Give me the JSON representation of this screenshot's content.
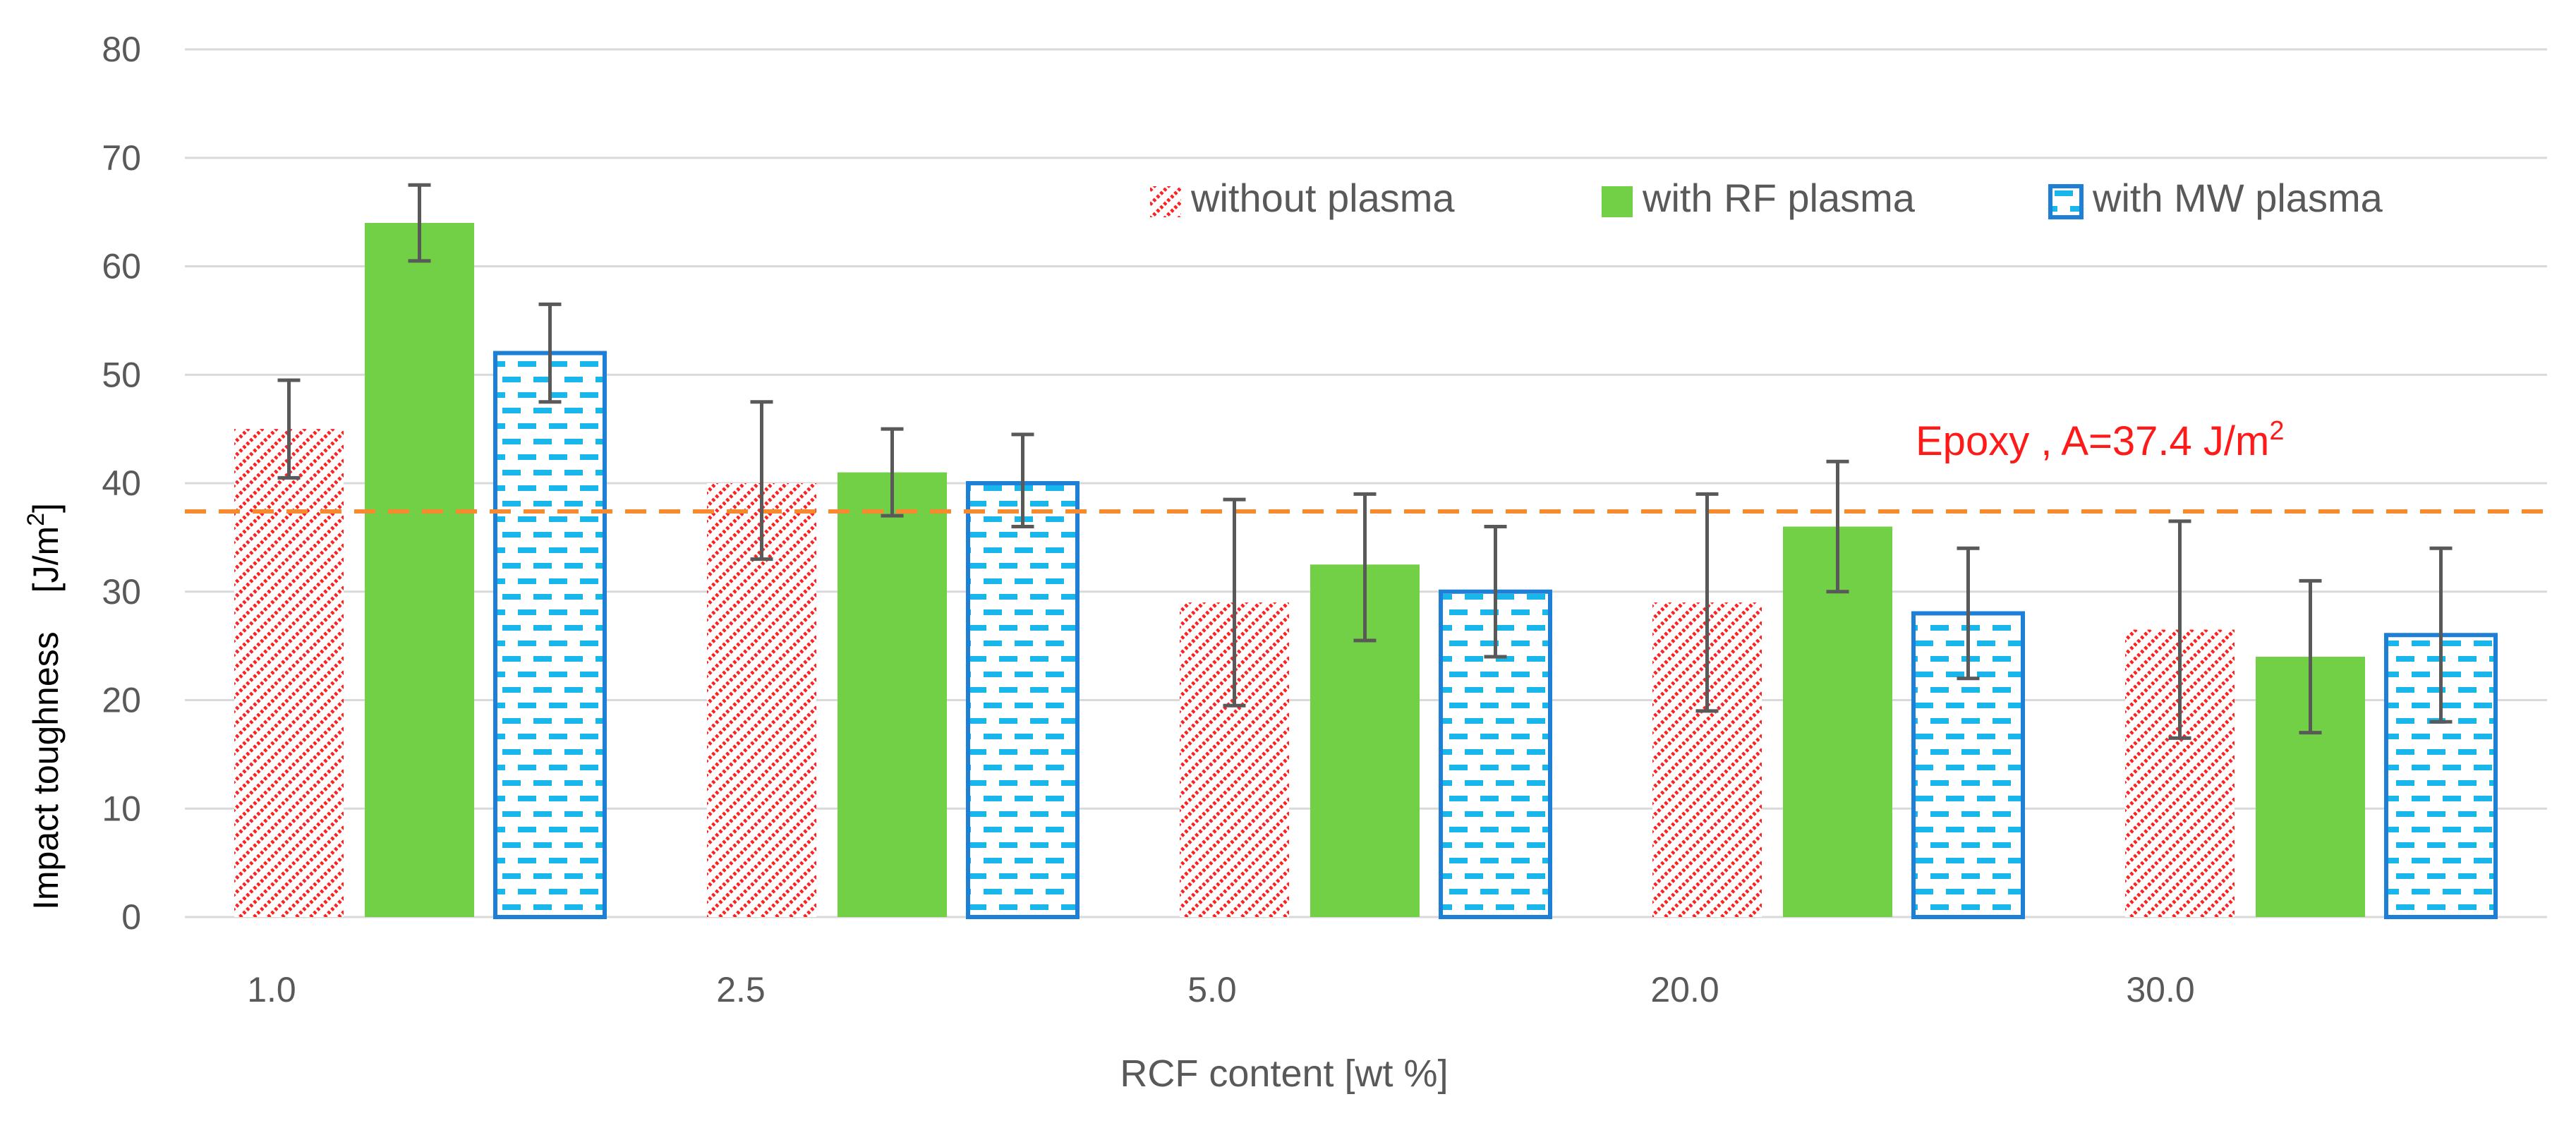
{
  "chart_data": {
    "type": "bar",
    "title": "",
    "xlabel": "RCF content [wt %]",
    "ylabel": "Impact toughness",
    "ylabel_unit_prefix": "[J/m",
    "ylabel_unit_exp": "2",
    "ylabel_unit_suffix": "]",
    "ylim": [
      0,
      80
    ],
    "yticks": [
      0,
      10,
      20,
      30,
      40,
      50,
      60,
      70,
      80
    ],
    "grid": true,
    "legend_position": "top-right",
    "categories": [
      "1.0",
      "2.5",
      "5.0",
      "20.0",
      "30.0"
    ],
    "series": [
      {
        "name": "without plasma",
        "pattern": "hatch-red",
        "color": "#ff2020",
        "values": [
          45,
          40,
          29,
          29,
          26.5
        ],
        "err_low": [
          40.5,
          33,
          19.5,
          19,
          16.5
        ],
        "err_high": [
          49.5,
          47.5,
          38.5,
          39,
          36.5
        ]
      },
      {
        "name": "with RF plasma",
        "pattern": "solid-green",
        "color": "#71d045",
        "values": [
          64,
          41,
          32.5,
          36,
          24
        ],
        "err_low": [
          60.5,
          37,
          25.5,
          30,
          17
        ],
        "err_high": [
          67.5,
          45,
          39,
          42,
          31
        ]
      },
      {
        "name": "with MW plasma",
        "pattern": "dash-blue",
        "color": "#1e7fd6",
        "values": [
          52,
          40,
          30,
          28,
          26
        ],
        "err_low": [
          47.5,
          36,
          24,
          22,
          18
        ],
        "err_high": [
          56.5,
          44.5,
          36,
          34,
          34
        ]
      }
    ],
    "reference_line": {
      "label_prefix": "Epoxy , A=37.4 J/m",
      "label_exp": "2",
      "value": 37.4,
      "color": "#f58a2e",
      "label_color": "#ff1a1a"
    }
  }
}
